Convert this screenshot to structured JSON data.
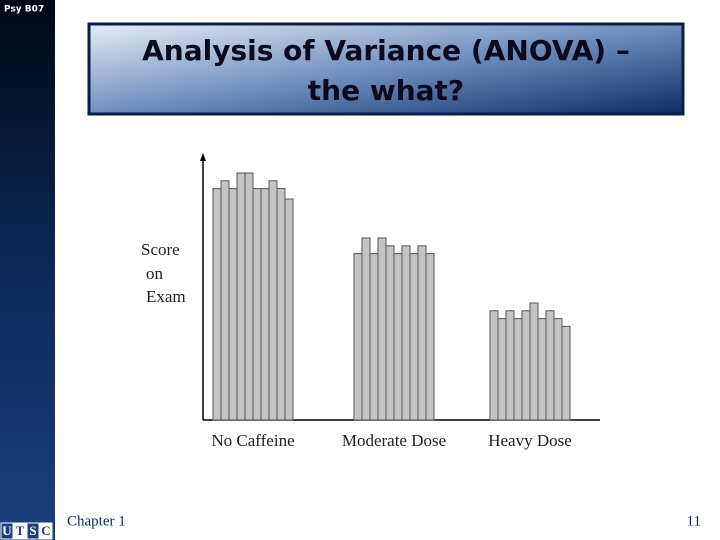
{
  "header": {
    "course": "Psy B07",
    "title_lines": [
      "Analysis of Variance (ANOVA) –",
      "the what?"
    ]
  },
  "chart_data": {
    "type": "bar",
    "ylabel_lines": [
      "Score",
      "on",
      "Exam"
    ],
    "ylim": [
      0,
      100
    ],
    "color": "#c4c4c4",
    "groups": [
      {
        "label": "No Caffeine",
        "values": [
          89,
          92,
          89,
          95,
          95,
          89,
          89,
          92,
          89,
          85
        ]
      },
      {
        "label": "Moderate Dose",
        "values": [
          64,
          70,
          64,
          70,
          67,
          64,
          67,
          64,
          67,
          64
        ]
      },
      {
        "label": "Heavy Dose",
        "values": [
          42,
          39,
          42,
          39,
          42,
          45,
          39,
          42,
          39,
          36
        ]
      }
    ]
  },
  "footer": {
    "chapter": "Chapter 1",
    "page": "11",
    "logo": [
      "U",
      "T",
      "S",
      "C"
    ]
  }
}
